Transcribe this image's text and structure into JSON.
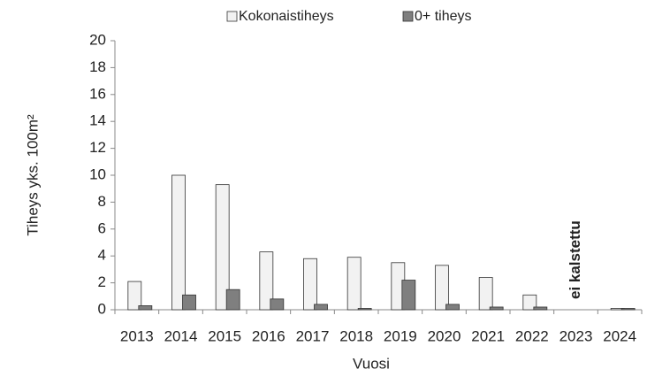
{
  "chart_data": {
    "type": "bar",
    "categories": [
      "2013",
      "2014",
      "2015",
      "2016",
      "2017",
      "2018",
      "2019",
      "2020",
      "2021",
      "2022",
      "2023",
      "2024"
    ],
    "series": [
      {
        "name": "Kokonaistiheys",
        "color": "#f2f2f2",
        "values": [
          2.1,
          10.0,
          9.3,
          4.3,
          3.8,
          3.9,
          3.5,
          3.3,
          2.4,
          1.1,
          null,
          0.1
        ]
      },
      {
        "name": "0+ tiheys",
        "color": "#7f7f7f",
        "values": [
          0.3,
          1.1,
          1.5,
          0.8,
          0.4,
          0.1,
          2.2,
          0.4,
          0.2,
          0.2,
          null,
          0.1
        ]
      }
    ],
    "ylim": [
      0,
      20
    ],
    "yticks": [
      0,
      2,
      4,
      6,
      8,
      10,
      12,
      14,
      16,
      18,
      20
    ],
    "y_label": "Tiheys yks. 100m²",
    "x_label": "Vuosi",
    "annotation": "ei kalstettu",
    "legend": "top",
    "grid": false
  }
}
